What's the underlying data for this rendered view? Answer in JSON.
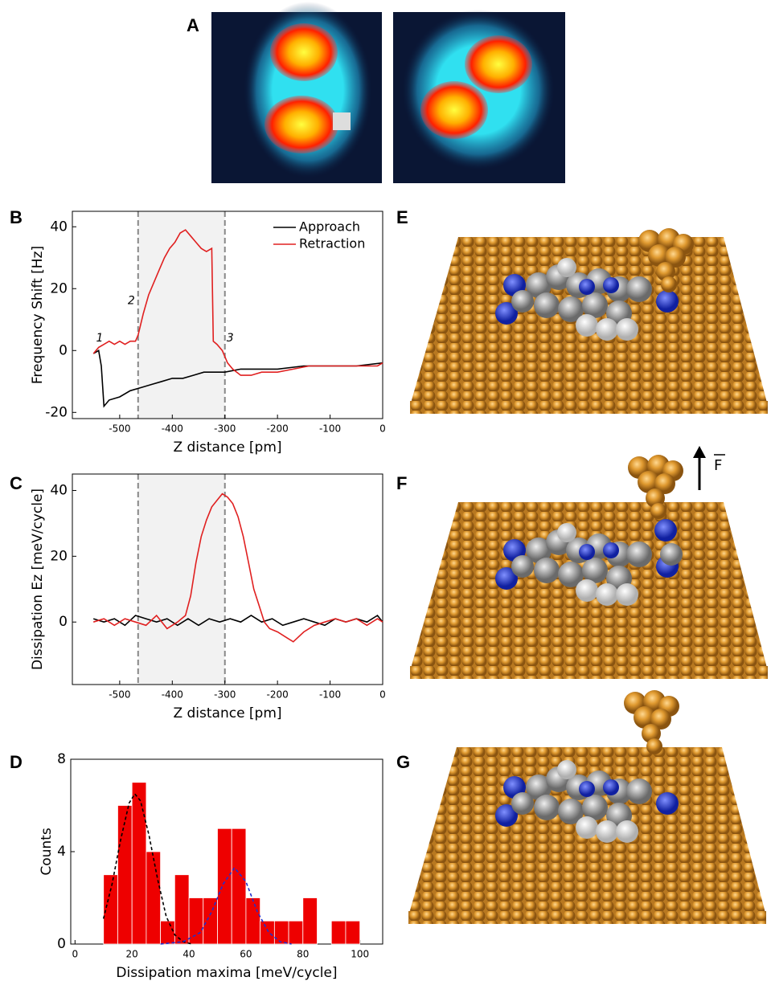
{
  "images": [
    {
      "label": "A"
    },
    {
      "label": "E"
    },
    {
      "label": "F",
      "force_label": "F"
    },
    {
      "label": "G"
    }
  ],
  "chart_data": [
    {
      "type": "line",
      "panel_label": "B",
      "xlabel": "Z distance [pm]",
      "ylabel": "Frequency Shift [Hz]",
      "xlim": [
        -590,
        0
      ],
      "ylim": [
        -22,
        45
      ],
      "xticks": [
        -500,
        -400,
        -300,
        -200,
        -100,
        0
      ],
      "yticks": [
        -20,
        0,
        20,
        40
      ],
      "shaded_region": [
        -465,
        -300
      ],
      "legend": "upper right",
      "annotations": [
        {
          "text": "1",
          "x": -538,
          "y": 4
        },
        {
          "text": "2",
          "x": -478,
          "y": 16
        },
        {
          "text": "3",
          "x": -290,
          "y": 4
        }
      ],
      "series": [
        {
          "name": "Approach",
          "color": "#000000",
          "x": [
            -550,
            -540,
            -535,
            -530,
            -520,
            -500,
            -480,
            -460,
            -440,
            -420,
            -400,
            -380,
            -360,
            -340,
            -320,
            -300,
            -270,
            -240,
            -200,
            -150,
            -100,
            -50,
            0
          ],
          "values": [
            -1,
            0,
            -5,
            -18,
            -16,
            -15,
            -13,
            -12,
            -11,
            -10,
            -9,
            -9,
            -8,
            -7,
            -7,
            -7,
            -6,
            -6,
            -6,
            -5,
            -5,
            -5,
            -4
          ]
        },
        {
          "name": "Retraction",
          "color": "#e02020",
          "x": [
            -550,
            -545,
            -540,
            -530,
            -520,
            -510,
            -500,
            -490,
            -480,
            -470,
            -465,
            -455,
            -445,
            -435,
            -425,
            -415,
            -405,
            -395,
            -385,
            -375,
            -365,
            -355,
            -345,
            -335,
            -325,
            -322,
            -315,
            -305,
            -295,
            -285,
            -270,
            -250,
            -230,
            -200,
            -170,
            -140,
            -100,
            -70,
            -40,
            -10,
            0
          ],
          "values": [
            -1,
            0,
            1,
            2,
            3,
            2,
            3,
            2,
            3,
            3,
            5,
            12,
            18,
            22,
            26,
            30,
            33,
            35,
            38,
            39,
            37,
            35,
            33,
            32,
            33,
            3,
            2,
            0,
            -4,
            -6,
            -8,
            -8,
            -7,
            -7,
            -6,
            -5,
            -5,
            -5,
            -5,
            -5,
            -4
          ]
        }
      ]
    },
    {
      "type": "line",
      "panel_label": "C",
      "xlabel": "Z distance [pm]",
      "ylabel": "Dissipation Ez [meV/cycle]",
      "xlim": [
        -590,
        0
      ],
      "ylim": [
        -19,
        45
      ],
      "xticks": [
        -500,
        -400,
        -300,
        -200,
        -100,
        0
      ],
      "yticks": [
        0,
        20,
        40
      ],
      "shaded_region": [
        -465,
        -300
      ],
      "series": [
        {
          "name": "Approach",
          "color": "#000000",
          "x": [
            -550,
            -530,
            -510,
            -490,
            -470,
            -450,
            -430,
            -410,
            -390,
            -370,
            -350,
            -330,
            -310,
            -290,
            -270,
            -250,
            -230,
            -210,
            -190,
            -170,
            -150,
            -130,
            -110,
            -90,
            -70,
            -50,
            -30,
            -10,
            0
          ],
          "values": [
            1,
            0,
            1,
            -1,
            2,
            1,
            0,
            1,
            -1,
            1,
            -1,
            1,
            0,
            1,
            0,
            2,
            0,
            1,
            -1,
            0,
            1,
            0,
            -1,
            1,
            0,
            1,
            0,
            2,
            0
          ]
        },
        {
          "name": "Retraction",
          "color": "#e02020",
          "x": [
            -550,
            -530,
            -510,
            -490,
            -470,
            -450,
            -430,
            -410,
            -390,
            -375,
            -365,
            -355,
            -345,
            -335,
            -325,
            -315,
            -305,
            -295,
            -285,
            -275,
            -265,
            -255,
            -245,
            -235,
            -225,
            -215,
            -200,
            -180,
            -170,
            -150,
            -130,
            -110,
            -90,
            -70,
            -50,
            -30,
            -10,
            0
          ],
          "values": [
            0,
            1,
            -1,
            1,
            0,
            -1,
            2,
            -2,
            0,
            2,
            8,
            18,
            26,
            31,
            35,
            37,
            39,
            38,
            36,
            32,
            26,
            18,
            10,
            5,
            0,
            -2,
            -3,
            -5,
            -6,
            -3,
            -1,
            0,
            1,
            0,
            1,
            -1,
            1,
            0
          ]
        }
      ]
    },
    {
      "type": "histogram",
      "panel_label": "D",
      "xlabel": "Dissipation maxima  [meV/cycle]",
      "ylabel": "Counts",
      "xlim": [
        -1.5,
        108
      ],
      "ylim": [
        0,
        8
      ],
      "xticks": [
        0,
        20,
        40,
        60,
        80,
        100
      ],
      "yticks": [
        0,
        4,
        8
      ],
      "color": "#ee0000",
      "bins": [
        10,
        15,
        20,
        25,
        30,
        35,
        40,
        45,
        50,
        55,
        60,
        65,
        70,
        75,
        80,
        85,
        90,
        95,
        100
      ],
      "counts": [
        3,
        6,
        7,
        4,
        1,
        3,
        2,
        2,
        5,
        5,
        2,
        1,
        1,
        1,
        2,
        0,
        1,
        1
      ],
      "fits": [
        {
          "color": "#000000",
          "x": [
            10,
            13,
            16,
            19,
            21,
            23,
            26,
            29,
            32,
            35,
            38,
            41
          ],
          "values": [
            1.1,
            2.6,
            4.5,
            6.1,
            6.5,
            6.2,
            4.7,
            2.8,
            1.2,
            0.4,
            0.1,
            0
          ]
        },
        {
          "color": "#2030d0",
          "x": [
            30,
            38,
            44,
            48,
            52,
            56,
            60,
            64,
            68,
            72,
            76
          ],
          "values": [
            0,
            0.1,
            0.5,
            1.4,
            2.6,
            3.3,
            2.7,
            1.4,
            0.5,
            0.1,
            0
          ]
        }
      ]
    }
  ]
}
